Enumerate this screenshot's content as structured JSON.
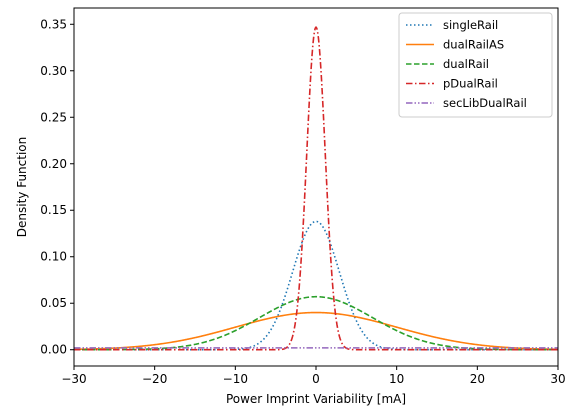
{
  "chart_data": {
    "type": "line",
    "title": "",
    "xlabel": "Power Imprint Variability [mA]",
    "ylabel": "Density Function",
    "xlim": [
      -30,
      30
    ],
    "ylim": [
      -0.0175,
      0.3675
    ],
    "grid": false,
    "legend_position": "top-right",
    "x_ticks": [
      -30,
      -20,
      -10,
      0,
      10,
      20,
      30
    ],
    "x_tick_labels": [
      "−30",
      "−20",
      "−10",
      "0",
      "10",
      "20",
      "30"
    ],
    "y_ticks": [
      0.0,
      0.05,
      0.1,
      0.15,
      0.2,
      0.25,
      0.3,
      0.35
    ],
    "y_tick_labels": [
      "0.00",
      "0.05",
      "0.10",
      "0.15",
      "0.20",
      "0.25",
      "0.30",
      "0.35"
    ],
    "series": [
      {
        "name": "singleRail",
        "distribution": "normal",
        "mean": 0,
        "std": 2.9,
        "peak": 0.138,
        "color": "#1f77b4",
        "line_style": "dotted"
      },
      {
        "name": "dualRailAS",
        "distribution": "normal",
        "mean": 0,
        "std": 10.0,
        "peak": 0.04,
        "color": "#ff7f0e",
        "line_style": "solid"
      },
      {
        "name": "dualRail",
        "distribution": "normal",
        "mean": 0,
        "std": 7.0,
        "peak": 0.057,
        "color": "#2ca02c",
        "line_style": "dashed"
      },
      {
        "name": "pDualRail",
        "distribution": "normal",
        "mean": 0,
        "std": 1.15,
        "peak": 0.347,
        "color": "#d62728",
        "line_style": "dashdot"
      },
      {
        "name": "secLibDualRail",
        "distribution": "normal",
        "mean": 0,
        "std": 200,
        "peak": 0.002,
        "color": "#9467bd",
        "line_style": "dashdotdot"
      }
    ]
  }
}
